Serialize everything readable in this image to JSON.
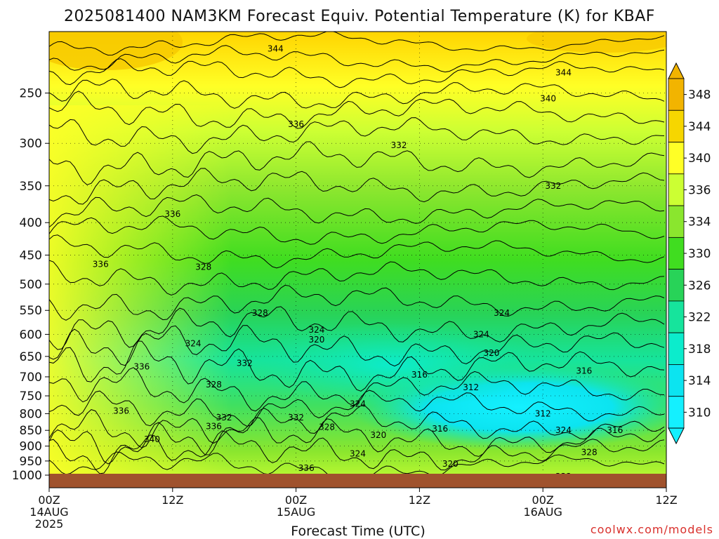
{
  "chart_data": {
    "type": "heatmap",
    "title": "2025081400 NAM3KM Forecast Equiv. Potential Temperature (K) for KBAF",
    "xlabel": "Forecast Time (UTC)",
    "x_ticks": [
      {
        "hour": 0,
        "line1": "00Z",
        "line2": "14AUG",
        "line3": "2025"
      },
      {
        "hour": 12,
        "line1": "12Z",
        "line2": "",
        "line3": ""
      },
      {
        "hour": 24,
        "line1": "00Z",
        "line2": "15AUG",
        "line3": ""
      },
      {
        "hour": 36,
        "line1": "12Z",
        "line2": "",
        "line3": ""
      },
      {
        "hour": 48,
        "line1": "00Z",
        "line2": "16AUG",
        "line3": ""
      },
      {
        "hour": 60,
        "line1": "12Z",
        "line2": "",
        "line3": ""
      }
    ],
    "xlim": [
      0,
      60
    ],
    "y_ticks": [
      "250",
      "300",
      "350",
      "400",
      "450",
      "500",
      "550",
      "600",
      "650",
      "700",
      "750",
      "800",
      "850",
      "900",
      "950",
      "1000"
    ],
    "ylim": [
      200,
      1000
    ],
    "y_scale": "log-pressure",
    "grid": true,
    "colorbar": {
      "labels": [
        "348",
        "344",
        "340",
        "336",
        "334",
        "330",
        "326",
        "322",
        "318",
        "314",
        "310"
      ],
      "colors": [
        "#f2b400",
        "#f6d600",
        "#ffff26",
        "#ccff33",
        "#8ae62e",
        "#40dd20",
        "#28d358",
        "#16e49c",
        "#0ceccc",
        "#0ce4f0",
        "#14f0ff"
      ],
      "placement": "right",
      "extend": "both"
    },
    "contour_labels": [
      {
        "text": "344",
        "hour": 22.0,
        "p": 213
      },
      {
        "text": "344",
        "hour": 50.0,
        "p": 232
      },
      {
        "text": "340",
        "hour": 48.5,
        "p": 255
      },
      {
        "text": "336",
        "hour": 24.0,
        "p": 280
      },
      {
        "text": "332",
        "hour": 34.0,
        "p": 302
      },
      {
        "text": "332",
        "hour": 49.0,
        "p": 350
      },
      {
        "text": "336",
        "hour": 12.0,
        "p": 388
      },
      {
        "text": "336",
        "hour": 5.0,
        "p": 465
      },
      {
        "text": "328",
        "hour": 15.0,
        "p": 470
      },
      {
        "text": "328",
        "hour": 20.5,
        "p": 555
      },
      {
        "text": "324",
        "hour": 44.0,
        "p": 555
      },
      {
        "text": "324",
        "hour": 26.0,
        "p": 590
      },
      {
        "text": "320",
        "hour": 26.0,
        "p": 612
      },
      {
        "text": "324",
        "hour": 42.0,
        "p": 600
      },
      {
        "text": "324",
        "hour": 14.0,
        "p": 620
      },
      {
        "text": "320",
        "hour": 43.0,
        "p": 642
      },
      {
        "text": "332",
        "hour": 19.0,
        "p": 666
      },
      {
        "text": "336",
        "hour": 9.0,
        "p": 675
      },
      {
        "text": "316",
        "hour": 36.0,
        "p": 695
      },
      {
        "text": "316",
        "hour": 52.0,
        "p": 685
      },
      {
        "text": "328",
        "hour": 16.0,
        "p": 720
      },
      {
        "text": "312",
        "hour": 41.0,
        "p": 727
      },
      {
        "text": "324",
        "hour": 30.0,
        "p": 772
      },
      {
        "text": "336",
        "hour": 7.0,
        "p": 792
      },
      {
        "text": "312",
        "hour": 48.0,
        "p": 800
      },
      {
        "text": "332",
        "hour": 17.0,
        "p": 812
      },
      {
        "text": "332",
        "hour": 24.0,
        "p": 812
      },
      {
        "text": "336",
        "hour": 16.0,
        "p": 838
      },
      {
        "text": "328",
        "hour": 27.0,
        "p": 840
      },
      {
        "text": "316",
        "hour": 38.0,
        "p": 845
      },
      {
        "text": "324",
        "hour": 50.0,
        "p": 850
      },
      {
        "text": "316",
        "hour": 55.0,
        "p": 850
      },
      {
        "text": "320",
        "hour": 32.0,
        "p": 865
      },
      {
        "text": "340",
        "hour": 10.0,
        "p": 878
      },
      {
        "text": "328",
        "hour": 52.5,
        "p": 920
      },
      {
        "text": "324",
        "hour": 30.0,
        "p": 925
      },
      {
        "text": "320",
        "hour": 39.0,
        "p": 960
      },
      {
        "text": "336",
        "hour": 25.0,
        "p": 975
      },
      {
        "text": "332",
        "hour": 50.0,
        "p": 1005
      }
    ]
  },
  "credit": "coolwx.com/models"
}
